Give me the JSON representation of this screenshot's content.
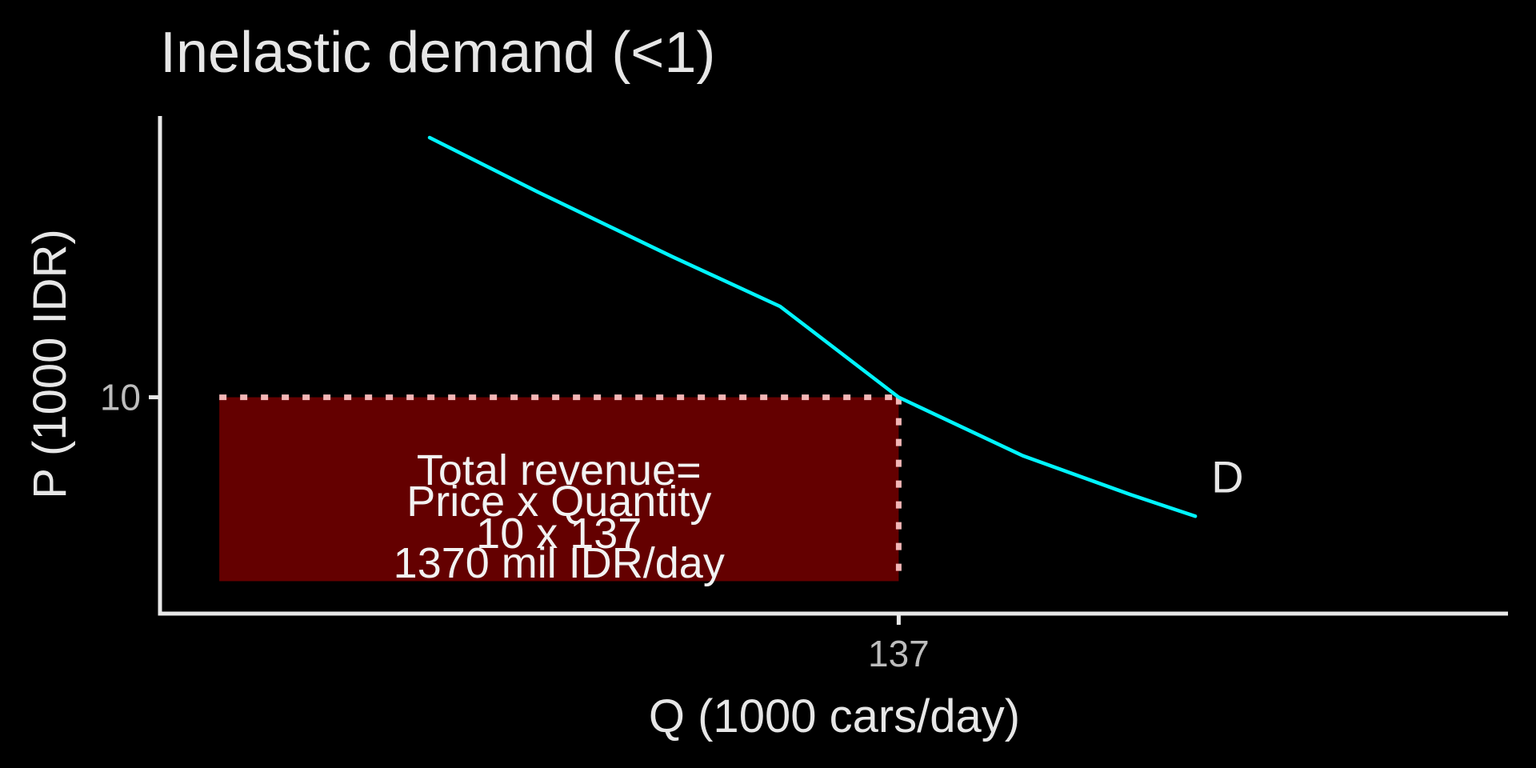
{
  "chart_data": {
    "type": "line",
    "title": "Inelastic demand (<1)",
    "xlabel": "Q (1000 cars/day)",
    "ylabel": "P (1000 IDR)",
    "xlim": [
      0,
      250
    ],
    "ylim": [
      0,
      23
    ],
    "grid": false,
    "legend": "none",
    "x_ticks": [
      {
        "value": 137,
        "label": "137"
      }
    ],
    "y_ticks": [
      {
        "value": 10,
        "label": "10"
      }
    ],
    "series": [
      {
        "name": "",
        "color": "#00F5FF",
        "curve_label": "D",
        "points": [
          {
            "x": 50,
            "y": 22
          },
          {
            "x": 70,
            "y": 19.5
          },
          {
            "x": 95,
            "y": 16.5
          },
          {
            "x": 115,
            "y": 14.2
          },
          {
            "x": 137,
            "y": 10
          },
          {
            "x": 160,
            "y": 7.3
          },
          {
            "x": 180,
            "y": 5.5
          },
          {
            "x": 192,
            "y": 4.5
          }
        ]
      }
    ],
    "revenue_rect": {
      "x_from": 11,
      "x_to": 137,
      "y_from": 1.5,
      "y_to": 10,
      "fill": "#640000",
      "outline": "#F2B6B6"
    },
    "annotation": {
      "lines": [
        "Total revenue=",
        "Price x Quantity",
        "10 x 137",
        "1370 mil IDR/day"
      ],
      "color": "#F2F2F2"
    },
    "colors": {
      "background": "#000000",
      "axis": "#E8E8E8",
      "tick_label": "#BDBDBD",
      "text": "#E6E6E6"
    }
  }
}
